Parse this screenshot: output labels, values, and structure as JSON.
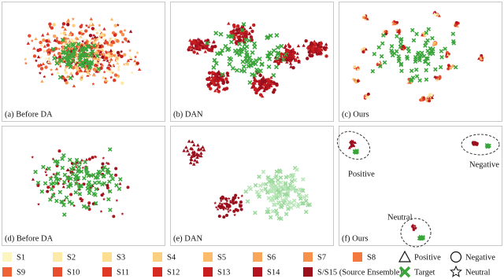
{
  "panels": [
    {
      "caption": "(a) Before DA"
    },
    {
      "caption": "(b) DAN"
    },
    {
      "caption": "(c) Ours"
    },
    {
      "caption": "(d) Before DA"
    },
    {
      "caption": "(e) DAN"
    },
    {
      "caption": "(f) Ours"
    }
  ],
  "annotations": [
    "Positive",
    "Negative",
    "Neutral"
  ],
  "legend": [
    {
      "label": "S1"
    },
    {
      "label": "S2"
    },
    {
      "label": "S3"
    },
    {
      "label": "S4"
    },
    {
      "label": "S5"
    },
    {
      "label": "S6"
    },
    {
      "label": "S7"
    },
    {
      "label": "S8"
    },
    {
      "label": "Positive"
    },
    {
      "label": "Negative"
    },
    {
      "label": "S9"
    },
    {
      "label": "S10"
    },
    {
      "label": "S11"
    },
    {
      "label": "S12"
    },
    {
      "label": "S13"
    },
    {
      "label": "S14"
    },
    {
      "label": "S/S15 (Source Ensemble)"
    },
    {
      "label": "Target"
    },
    {
      "label": "Neutral"
    }
  ]
}
